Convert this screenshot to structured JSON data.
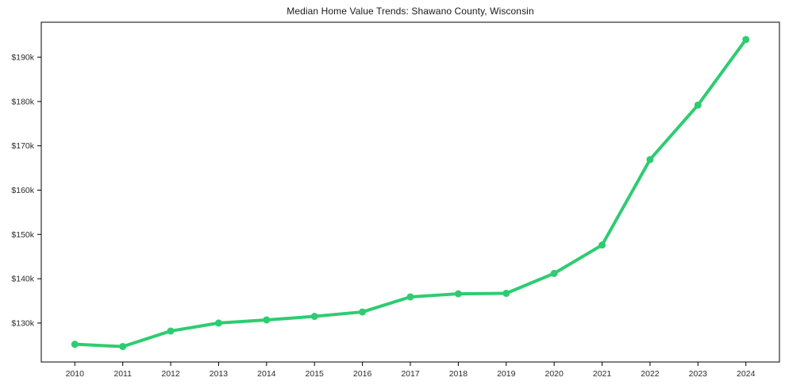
{
  "chart_data": {
    "type": "line",
    "title": "Median Home Value Trends: Shawano County, Wisconsin",
    "xlabel": "",
    "ylabel": "",
    "x": [
      2010,
      2011,
      2012,
      2013,
      2014,
      2015,
      2016,
      2017,
      2018,
      2019,
      2020,
      2021,
      2022,
      2023,
      2024
    ],
    "series": [
      {
        "name": "Median Home Value",
        "values": [
          125200,
          124700,
          128200,
          130000,
          130700,
          131500,
          132500,
          135900,
          136600,
          136700,
          141200,
          147600,
          166900,
          179200,
          194000
        ],
        "color": "#2ecc71",
        "marker": "circle",
        "line_width": 4,
        "marker_radius": 4.5
      }
    ],
    "xtick_labels": [
      "2010",
      "2011",
      "2012",
      "2013",
      "2014",
      "2015",
      "2016",
      "2017",
      "2018",
      "2019",
      "2020",
      "2021",
      "2022",
      "2023",
      "2024"
    ],
    "ytick_values": [
      130000,
      140000,
      150000,
      160000,
      170000,
      180000,
      190000
    ],
    "ytick_labels": [
      "$130k",
      "$140k",
      "$150k",
      "$160k",
      "$170k",
      "$180k",
      "$190k"
    ],
    "xlim": [
      2009.3,
      2024.7
    ],
    "ylim": [
      121200,
      197900
    ],
    "grid": false,
    "legend": "none",
    "frame_color": "#000000",
    "background_color": "#ffffff"
  }
}
